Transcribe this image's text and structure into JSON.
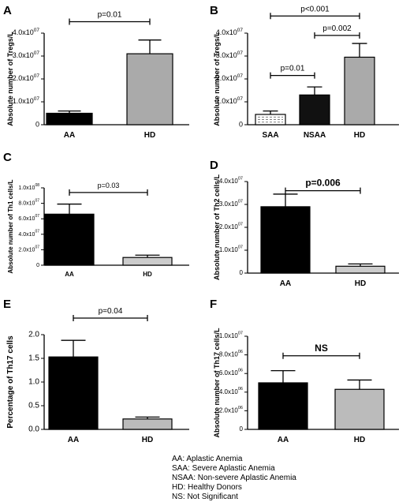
{
  "chart_data": [
    {
      "panel": "A",
      "type": "bar",
      "ylabel": "Absolute number of  Tregs/L",
      "categories": [
        "AA",
        "HD"
      ],
      "values": [
        5000000.0,
        31000000.0
      ],
      "errors": [
        1000000.0,
        6000000.0
      ],
      "fills": [
        "#000000",
        "#aaaaaa"
      ],
      "ylim": [
        0,
        40000000.0
      ],
      "yticks": [
        0,
        10000000.0,
        20000000.0,
        30000000.0,
        40000000.0
      ],
      "yticklabels": [
        "0",
        "1.0x10^07",
        "2.0x10^07",
        "3.0x10^07",
        "4.0x10^07"
      ],
      "annotations": [
        {
          "text": "p=0.01",
          "from": 0,
          "to": 1,
          "y": 45000000.0
        }
      ]
    },
    {
      "panel": "B",
      "type": "bar",
      "ylabel": "Absolute number of Tregs/L",
      "categories": [
        "SAA",
        "NSAA",
        "HD"
      ],
      "values": [
        4500000.0,
        13000000.0,
        29500000.0
      ],
      "errors": [
        1500000.0,
        3500000.0,
        6000000.0
      ],
      "fills": [
        "#ffffff",
        "#111111",
        "#aaaaaa"
      ],
      "ylim": [
        0,
        40000000.0
      ],
      "yticks": [
        0,
        10000000.0,
        20000000.0,
        30000000.0,
        40000000.0
      ],
      "yticklabels": [
        "0",
        "1.0x10^07",
        "2.0x10^07",
        "3.0x10^07",
        "4.0x10^07"
      ],
      "annotations": [
        {
          "text": "p<0.001",
          "from": 0,
          "to": 2,
          "y": 47500000.0
        },
        {
          "text": "p=0.01",
          "from": 0,
          "to": 1,
          "y": 21500000.0
        },
        {
          "text": "p=0.002",
          "from": 1,
          "to": 2,
          "y": 39000000.0
        }
      ]
    },
    {
      "panel": "C",
      "type": "bar",
      "ylabel": "Absolute number of Th1 cells/L",
      "categories": [
        "AA",
        "HD"
      ],
      "values": [
        66000000.0,
        10000000.0
      ],
      "errors": [
        13000000.0,
        3000000.0
      ],
      "fills": [
        "#000000",
        "#cccccc"
      ],
      "ylim": [
        0,
        100000000.0
      ],
      "yticks": [
        0,
        20000000.0,
        40000000.0,
        60000000.0,
        80000000.0,
        100000000.0
      ],
      "yticklabels": [
        "0",
        "2.0x10^07",
        "4.0x10^07",
        "6.0x10^07",
        "8.0x10^07",
        "1.0x10^08"
      ],
      "annotations": [
        {
          "text": "p=0.03",
          "from": 0,
          "to": 1,
          "y": 94000000.0
        }
      ]
    },
    {
      "panel": "D",
      "type": "bar",
      "ylabel": "Absolute number of  Th2 cells/L",
      "categories": [
        "AA",
        "HD"
      ],
      "values": [
        29000000.0,
        3000000.0
      ],
      "errors": [
        5500000.0,
        1000000.0
      ],
      "fills": [
        "#000000",
        "#cccccc"
      ],
      "ylim": [
        0,
        40000000.0
      ],
      "yticks": [
        0,
        10000000.0,
        20000000.0,
        30000000.0,
        40000000.0
      ],
      "yticklabels": [
        "0",
        "1.0x10^07",
        "2.0x10^07",
        "3.0x10^07",
        "4.0x10^07"
      ],
      "annotations": [
        {
          "text": "p=0.006",
          "from": 0,
          "to": 1,
          "y": 36000000.0,
          "bold": true
        }
      ]
    },
    {
      "panel": "E",
      "type": "bar",
      "ylabel": "Percentage of Th17 cells",
      "categories": [
        "AA",
        "HD"
      ],
      "values": [
        1.53,
        0.22
      ],
      "errors": [
        0.35,
        0.04
      ],
      "fills": [
        "#000000",
        "#bbbbbb"
      ],
      "ylim": [
        0,
        2.0
      ],
      "yticks": [
        0,
        0.5,
        1.0,
        1.5,
        2.0
      ],
      "yticklabels": [
        "0.0",
        "0.5",
        "1.0",
        "1.5",
        "2.0"
      ],
      "annotations": [
        {
          "text": "p=0.04",
          "from": 0,
          "to": 1,
          "y": 2.35
        }
      ]
    },
    {
      "panel": "F",
      "type": "bar",
      "ylabel": "Absolute number of  Th17 cells/L",
      "categories": [
        "AA",
        "HD"
      ],
      "values": [
        5000000.0,
        4300000.0
      ],
      "errors": [
        1300000.0,
        1000000.0
      ],
      "fills": [
        "#000000",
        "#bbbbbb"
      ],
      "ylim": [
        0,
        10000000.0
      ],
      "yticks": [
        0,
        2000000.0,
        4000000.0,
        6000000.0,
        8000000.0,
        10000000.0
      ],
      "yticklabels": [
        "0",
        "2.0x10^06",
        "4.0x10^06",
        "6.0x10^06",
        "8.0x10^06",
        "1.0x10^07"
      ],
      "annotations": [
        {
          "text": "NS",
          "from": 0,
          "to": 1,
          "y": 7900000.0,
          "bold": true
        }
      ]
    }
  ],
  "legend": {
    "lines": [
      "AA: Aplastic Anemia",
      "SAA: Severe Aplastic Anemia",
      "NSAA: Non-severe Aplastic Anemia",
      "HD: Healthy Donors",
      "NS: Not Significant"
    ]
  }
}
